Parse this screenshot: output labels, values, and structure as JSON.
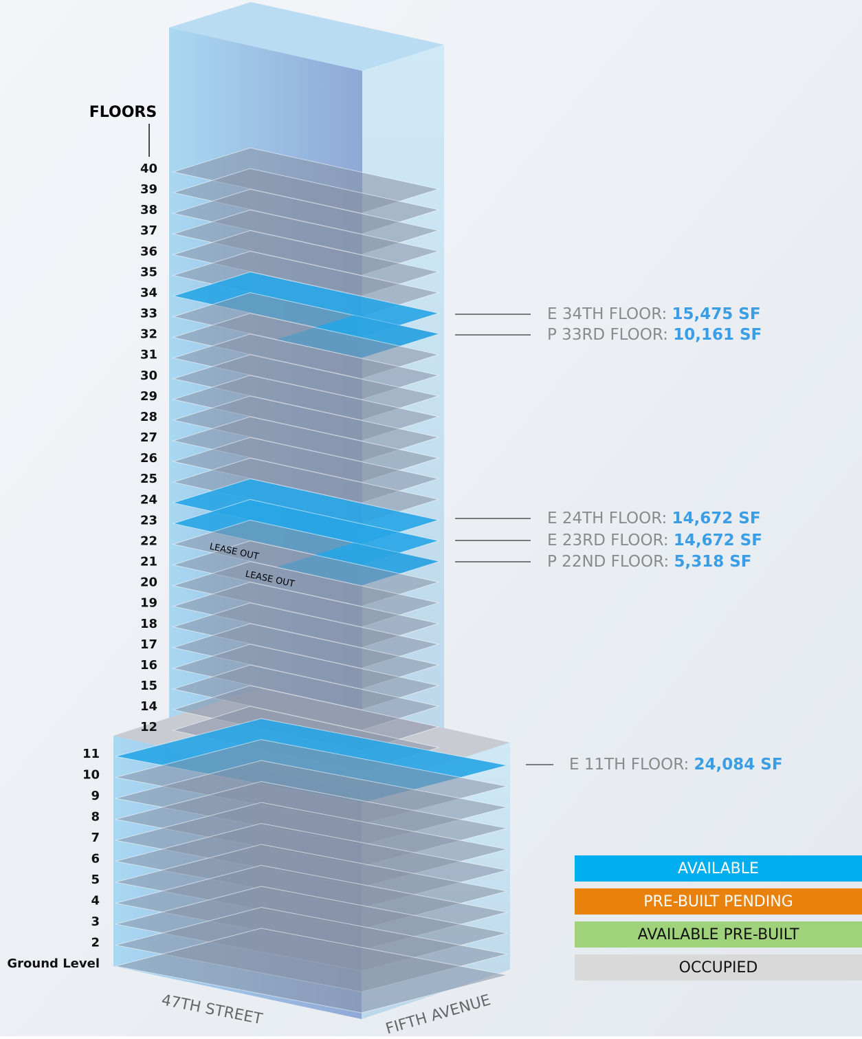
{
  "floors_title": "FLOORS",
  "tower_floors": [
    "40",
    "39",
    "38",
    "37",
    "36",
    "35",
    "34",
    "33",
    "32",
    "31",
    "30",
    "29",
    "28",
    "27",
    "26",
    "25",
    "24",
    "23",
    "22",
    "21",
    "20",
    "19",
    "18",
    "17",
    "16",
    "15",
    "14",
    "12"
  ],
  "base_floors": [
    "11",
    "10",
    "9",
    "8",
    "7",
    "6",
    "5",
    "4",
    "3",
    "2",
    "Ground Level"
  ],
  "annotations": [
    "LEASE OUT",
    "LEASE OUT"
  ],
  "streets": [
    "47TH STREET",
    "FIFTH AVENUE"
  ],
  "callouts": [
    {
      "label": "E 34TH FLOOR:",
      "area": "15,475 SF"
    },
    {
      "label": "P 33RD FLOOR:",
      "area": "10,161 SF"
    },
    {
      "label": "E 24TH FLOOR:",
      "area": "14,672 SF"
    },
    {
      "label": "E 23RD FLOOR:",
      "area": "14,672 SF"
    },
    {
      "label": "P 22ND FLOOR:",
      "area": "5,318 SF"
    },
    {
      "label": "E 11TH FLOOR:",
      "area": "24,084 SF"
    }
  ],
  "legend": [
    {
      "label": "AVAILABLE",
      "color": "#00aeef"
    },
    {
      "label": "PRE-BUILT PENDING",
      "color": "#e8820c"
    },
    {
      "label": "AVAILABLE PRE-BUILT",
      "color": "#9fd27a"
    },
    {
      "label": "OCCUPIED",
      "color": "#d9d9d9"
    }
  ]
}
